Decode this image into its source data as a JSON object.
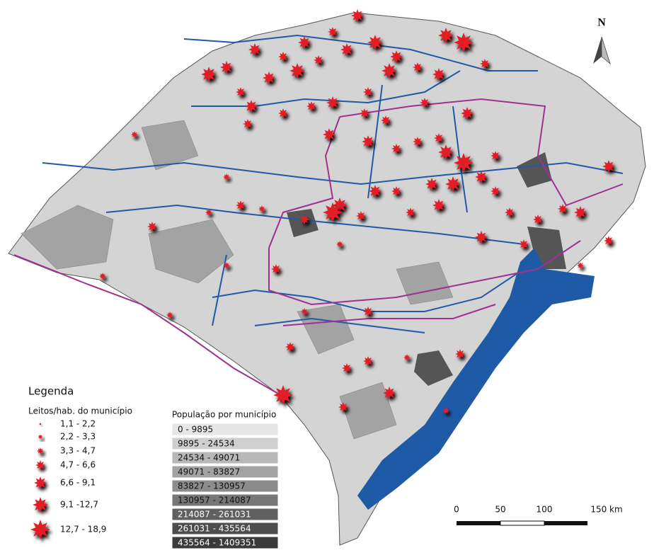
{
  "map": {
    "north_label": "N",
    "legend": {
      "title": "Legenda",
      "beds": {
        "title": "Leitos/hab. do município",
        "classes": [
          "1,1 - 2,2",
          "2,2 - 3,3",
          "3,3 - 4,7",
          "4,7 - 6,6",
          "6,6 - 9,1",
          "9,1 -12,7",
          "12,7 - 18,9"
        ]
      },
      "population": {
        "title": "População por município",
        "classes": [
          "0 - 9895",
          "9895 - 24534",
          "24534 - 49071",
          "49071 - 83827",
          "83827 - 130957",
          "130957 - 214087",
          "214087 - 261031",
          "261031 - 435564",
          "435564 - 1409351"
        ]
      }
    },
    "scale_bar": {
      "labels": [
        "0",
        "50",
        "100",
        "150 km"
      ]
    }
  }
}
